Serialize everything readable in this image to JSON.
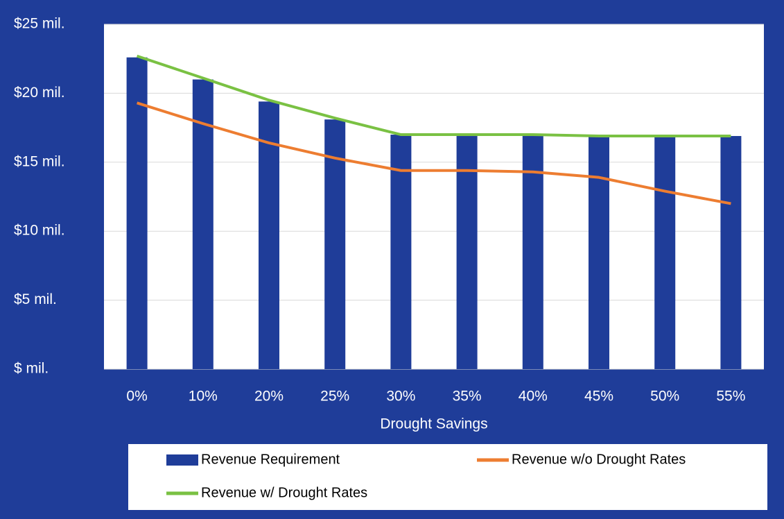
{
  "chart_data": {
    "type": "bar-line",
    "x_label": "Drought Savings",
    "categories": [
      "0%",
      "10%",
      "20%",
      "25%",
      "30%",
      "35%",
      "40%",
      "45%",
      "50%",
      "55%"
    ],
    "series": [
      {
        "name": "Revenue Requirement",
        "type": "bar",
        "color": "#1f3d99",
        "values": [
          22.6,
          21.0,
          19.4,
          18.1,
          17.0,
          16.9,
          16.9,
          16.9,
          16.9,
          16.9
        ]
      },
      {
        "name": "Revenue w/o Drought Rates",
        "type": "line",
        "color": "#ed7d31",
        "values": [
          19.3,
          17.8,
          16.4,
          15.3,
          14.4,
          14.4,
          14.3,
          13.9,
          12.9,
          12.0
        ]
      },
      {
        "name": "Revenue w/ Drought Rates",
        "type": "line",
        "color": "#7ac143",
        "values": [
          22.7,
          21.1,
          19.5,
          18.2,
          17.0,
          17.0,
          17.0,
          16.9,
          16.9,
          16.9
        ]
      }
    ],
    "ylim": [
      0,
      25
    ],
    "yticks": [
      {
        "value": 0,
        "label": "$ mil."
      },
      {
        "value": 5,
        "label": "$5 mil."
      },
      {
        "value": 10,
        "label": "$10 mil."
      },
      {
        "value": 15,
        "label": "$15 mil."
      },
      {
        "value": 20,
        "label": "$20 mil."
      },
      {
        "value": 25,
        "label": "$25 mil."
      }
    ],
    "grid": true
  }
}
